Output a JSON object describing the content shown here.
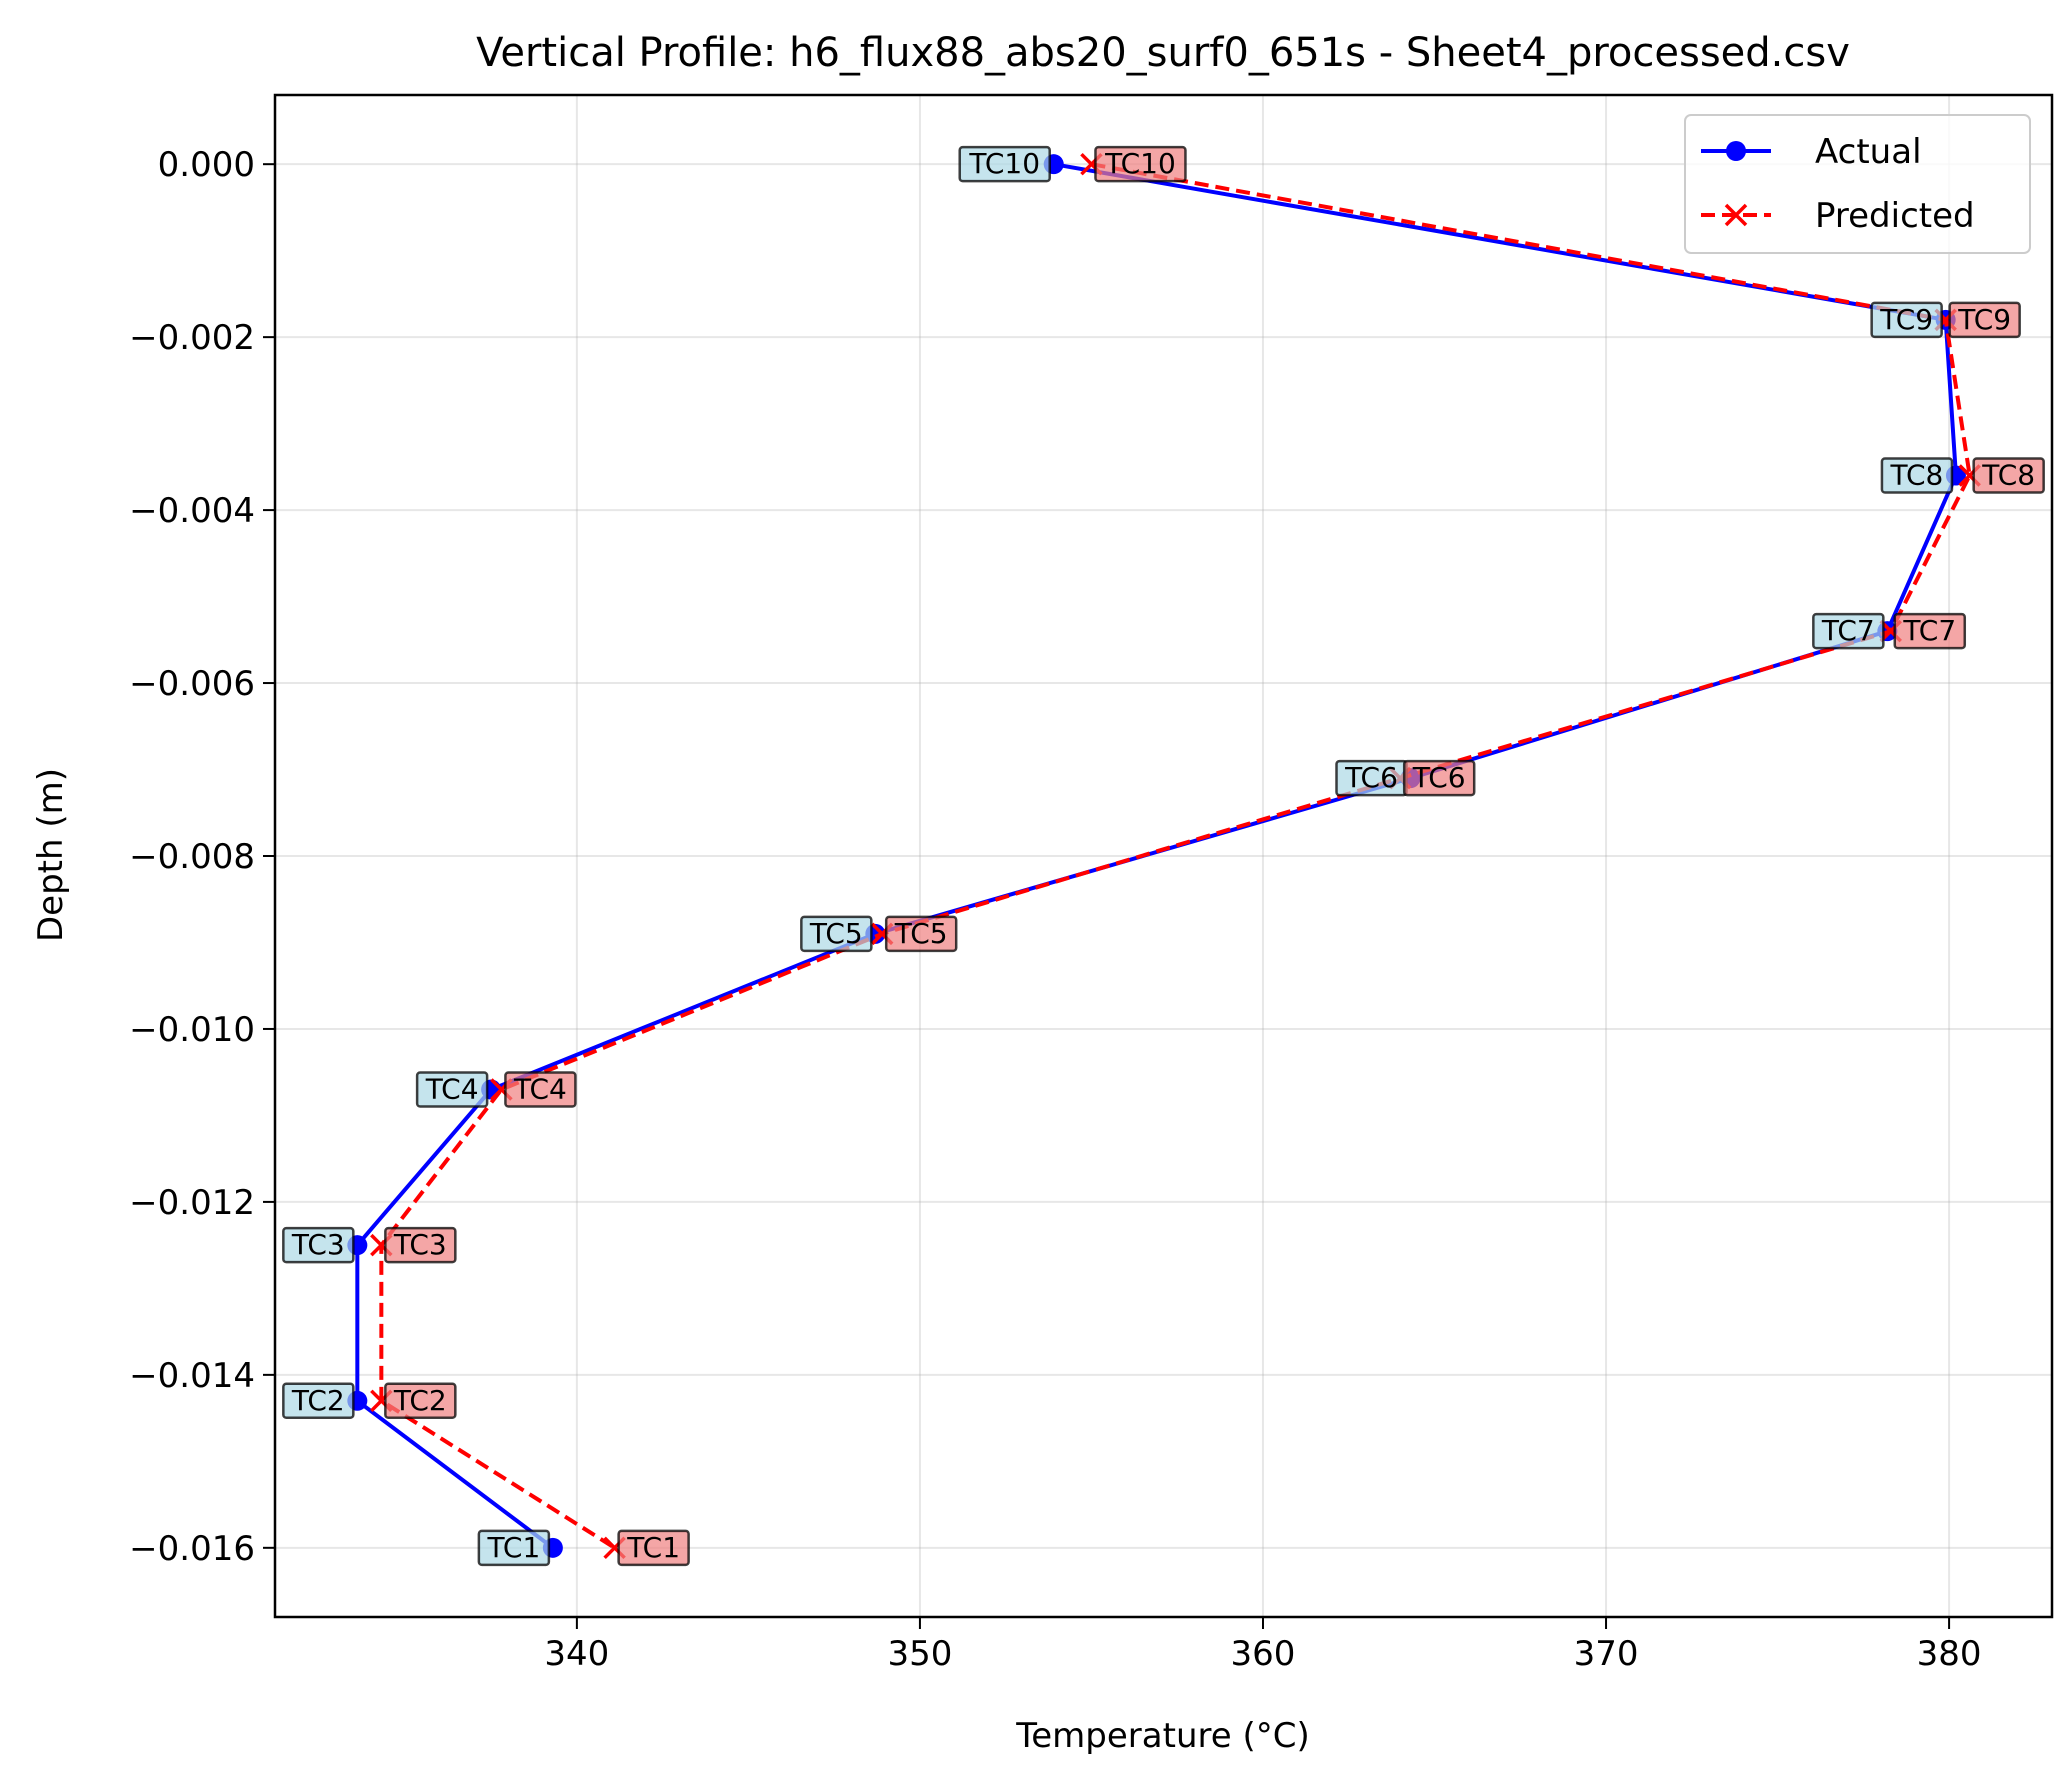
{
  "chart_data": {
    "type": "line",
    "title": "Vertical Profile: h6_flux88_abs20_surf0_651s - Sheet4_processed.csv",
    "xlabel": "Temperature (°C)",
    "ylabel": "Depth (m)",
    "xlim": [
      331.2,
      383.0
    ],
    "ylim": [
      -0.0168,
      0.0008
    ],
    "x_ticks": [
      340,
      350,
      360,
      370,
      380
    ],
    "x_tick_labels": [
      "340",
      "350",
      "360",
      "370",
      "380"
    ],
    "y_ticks": [
      0.0,
      -0.002,
      -0.004,
      -0.006,
      -0.008,
      -0.01,
      -0.012,
      -0.014,
      -0.016
    ],
    "y_tick_labels": [
      "0.000",
      "−0.002",
      "−0.004",
      "−0.006",
      "−0.008",
      "−0.010",
      "−0.012",
      "−0.014",
      "−0.016"
    ],
    "grid": true,
    "legend_position": "top-right",
    "series": [
      {
        "name": "Actual",
        "color": "#0000ff",
        "line_style": "solid",
        "marker": "circle",
        "label_box_color": "#add8e6",
        "points": [
          {
            "label": "TC10",
            "x": 353.9,
            "y": 0.0
          },
          {
            "label": "TC9",
            "x": 379.9,
            "y": -0.0018
          },
          {
            "label": "TC8",
            "x": 380.2,
            "y": -0.0036
          },
          {
            "label": "TC7",
            "x": 378.2,
            "y": -0.0054
          },
          {
            "label": "TC6",
            "x": 364.3,
            "y": -0.0071
          },
          {
            "label": "TC5",
            "x": 348.7,
            "y": -0.0089
          },
          {
            "label": "TC4",
            "x": 337.5,
            "y": -0.0107
          },
          {
            "label": "TC3",
            "x": 333.6,
            "y": -0.0125
          },
          {
            "label": "TC2",
            "x": 333.6,
            "y": -0.0143
          },
          {
            "label": "TC1",
            "x": 339.3,
            "y": -0.016
          }
        ]
      },
      {
        "name": "Predicted",
        "color": "#ff0000",
        "line_style": "dashed",
        "marker": "x",
        "label_box_color": "#f08080",
        "points": [
          {
            "label": "TC10",
            "x": 355.0,
            "y": 0.0
          },
          {
            "label": "TC9",
            "x": 379.9,
            "y": -0.0018
          },
          {
            "label": "TC8",
            "x": 380.6,
            "y": -0.0036
          },
          {
            "label": "TC7",
            "x": 378.3,
            "y": -0.0054
          },
          {
            "label": "TC6",
            "x": 364.0,
            "y": -0.0071
          },
          {
            "label": "TC5",
            "x": 348.9,
            "y": -0.0089
          },
          {
            "label": "TC4",
            "x": 337.8,
            "y": -0.0107
          },
          {
            "label": "TC3",
            "x": 334.3,
            "y": -0.0125
          },
          {
            "label": "TC2",
            "x": 334.3,
            "y": -0.0143
          },
          {
            "label": "TC1",
            "x": 341.1,
            "y": -0.016
          }
        ]
      }
    ]
  }
}
